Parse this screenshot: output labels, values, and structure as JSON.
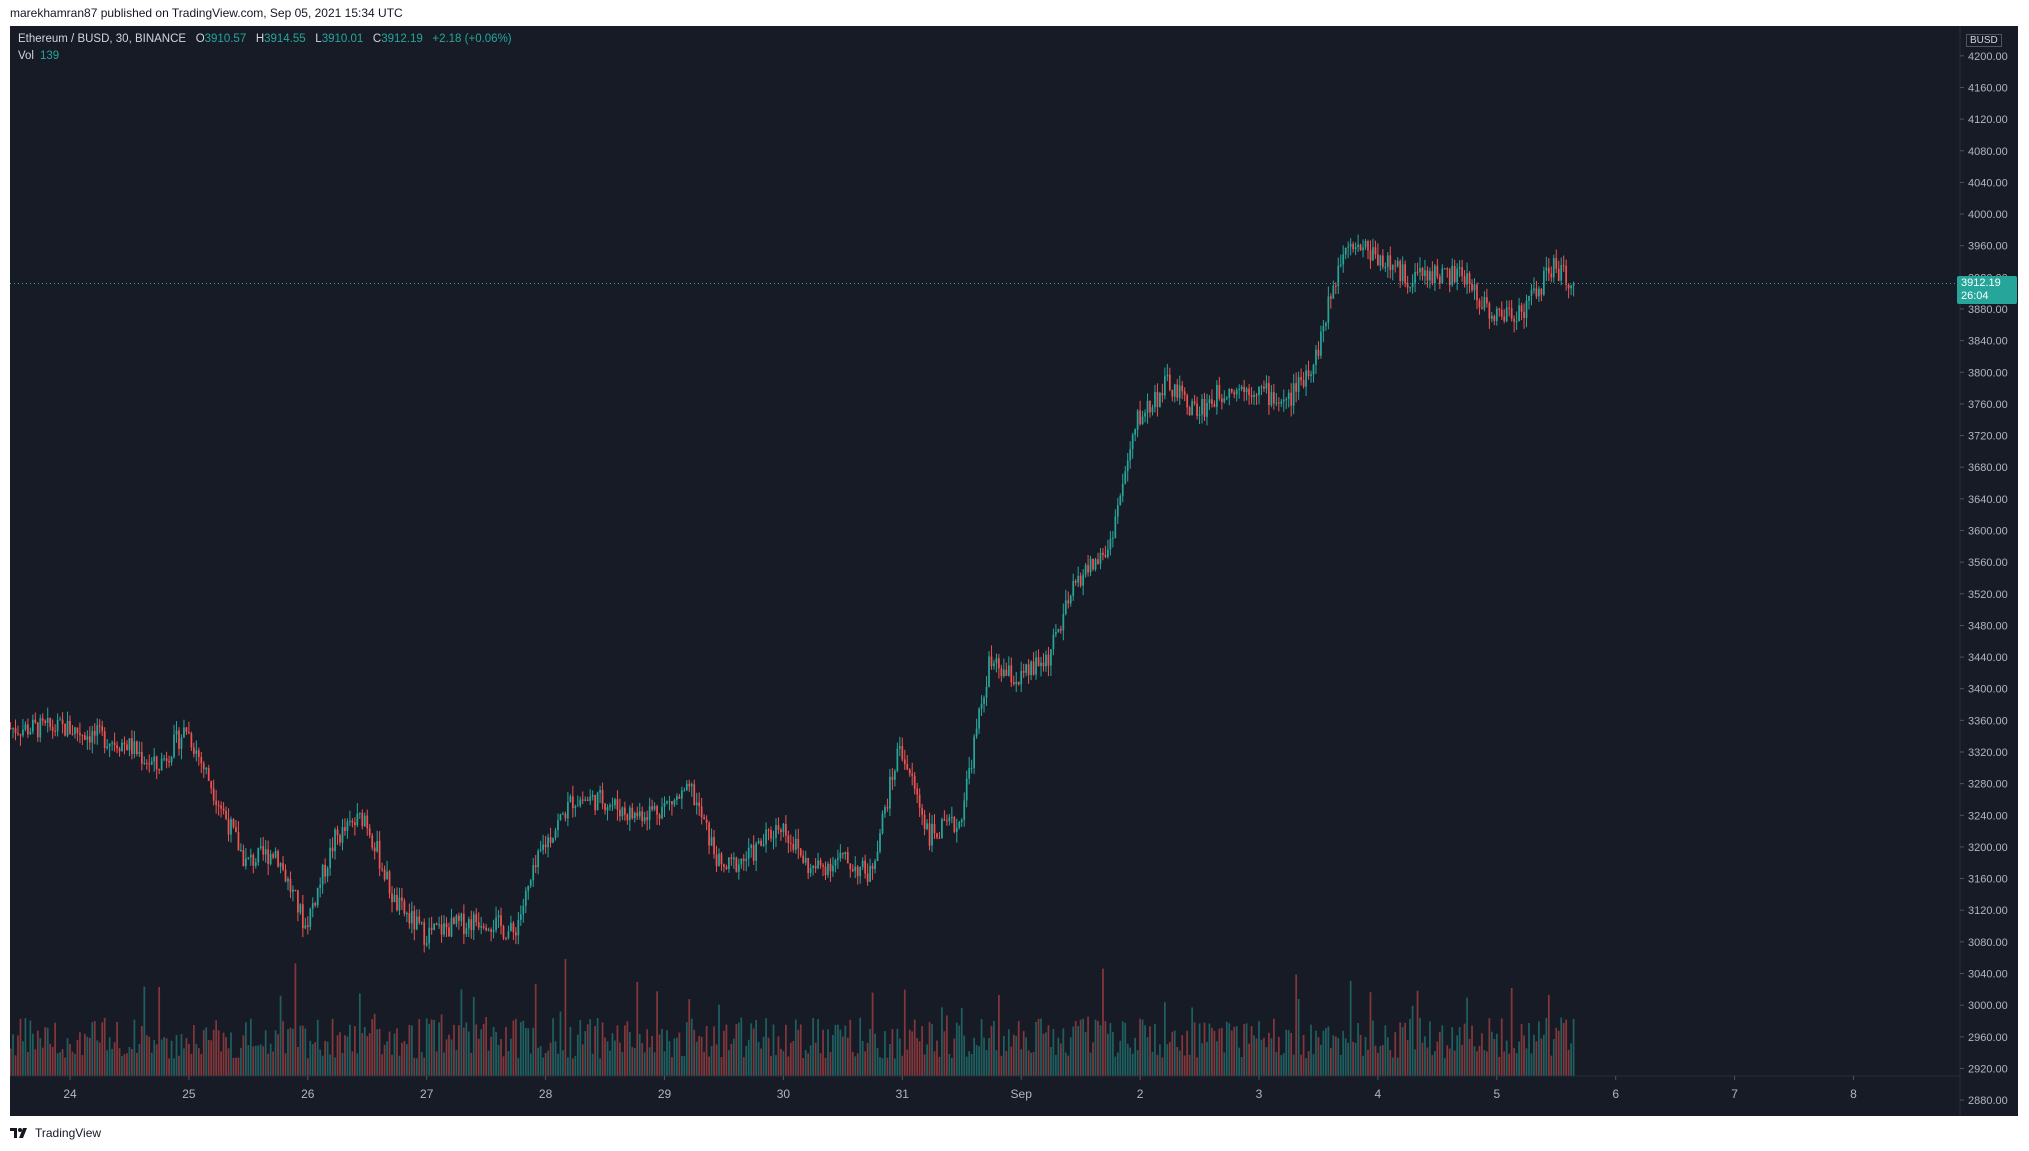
{
  "header": {
    "publisher_text": "marekhamran87 published on TradingView.com, Sep 05, 2021 15:34 UTC"
  },
  "legend": {
    "symbol": "Ethereum / BUSD, 30, BINANCE",
    "open_label": "O",
    "open": "3910.57",
    "high_label": "H",
    "high": "3914.55",
    "low_label": "L",
    "low": "3910.01",
    "close_label": "C",
    "close": "3912.19",
    "change": "+2.18 (+0.06%)",
    "vol_label": "Vol",
    "vol_value": "139"
  },
  "price_tag": {
    "price": "3912.19",
    "countdown": "26:04"
  },
  "unit_badge": "BUSD",
  "footer": {
    "brand": "TradingView"
  },
  "colors": {
    "background": "#171b26",
    "up": "#26a69a",
    "down": "#ef5350",
    "axis_text": "#b2b5be"
  },
  "chart_data": {
    "type": "candlestick",
    "timeframe": "30",
    "y_axis_ticks": [
      "4200.00",
      "4160.00",
      "4120.00",
      "4080.00",
      "4040.00",
      "4000.00",
      "3960.00",
      "3920.00",
      "3880.00",
      "3840.00",
      "3800.00",
      "3760.00",
      "3720.00",
      "3680.00",
      "3640.00",
      "3600.00",
      "3560.00",
      "3520.00",
      "3480.00",
      "3440.00",
      "3400.00",
      "3360.00",
      "3320.00",
      "3280.00",
      "3240.00",
      "3200.00",
      "3160.00",
      "3120.00",
      "3080.00",
      "3040.00",
      "3000.00",
      "2960.00",
      "2920.00",
      "2880.00"
    ],
    "y_range": [
      2870,
      4220
    ],
    "x_axis_ticks": [
      "24",
      "25",
      "26",
      "27",
      "28",
      "29",
      "30",
      "31",
      "Sep",
      "2",
      "3",
      "4",
      "5",
      "6",
      "7",
      "8"
    ],
    "last_price": 3912.19,
    "anchors": [
      {
        "date": "Aug 24 00:00",
        "price": 3350
      },
      {
        "date": "Aug 24 12:00",
        "price": 3330
      },
      {
        "date": "Aug 24 18:00",
        "price": 3300
      },
      {
        "date": "Aug 25 00:00",
        "price": 3350
      },
      {
        "date": "Aug 25 12:00",
        "price": 3180
      },
      {
        "date": "Aug 25 18:00",
        "price": 3195
      },
      {
        "date": "Aug 26 00:00",
        "price": 3100
      },
      {
        "date": "Aug 26 06:00",
        "price": 3210
      },
      {
        "date": "Aug 26 12:00",
        "price": 3240
      },
      {
        "date": "Aug 26 18:00",
        "price": 3130
      },
      {
        "date": "Aug 27 00:00",
        "price": 3090
      },
      {
        "date": "Aug 27 12:00",
        "price": 3110
      },
      {
        "date": "Aug 27 18:00",
        "price": 3090
      },
      {
        "date": "Aug 28 00:00",
        "price": 3200
      },
      {
        "date": "Aug 28 06:00",
        "price": 3260
      },
      {
        "date": "Aug 28 12:00",
        "price": 3260
      },
      {
        "date": "Aug 28 18:00",
        "price": 3240
      },
      {
        "date": "Aug 29 00:00",
        "price": 3250
      },
      {
        "date": "Aug 29 06:00",
        "price": 3270
      },
      {
        "date": "Aug 29 12:00",
        "price": 3170
      },
      {
        "date": "Aug 29 18:00",
        "price": 3190
      },
      {
        "date": "Aug 30 00:00",
        "price": 3230
      },
      {
        "date": "Aug 30 06:00",
        "price": 3170
      },
      {
        "date": "Aug 30 12:00",
        "price": 3185
      },
      {
        "date": "Aug 30 18:00",
        "price": 3165
      },
      {
        "date": "Aug 31 00:00",
        "price": 3330
      },
      {
        "date": "Aug 31 06:00",
        "price": 3215
      },
      {
        "date": "Aug 31 12:00",
        "price": 3230
      },
      {
        "date": "Aug 31 18:00",
        "price": 3430
      },
      {
        "date": "Sep 01 00:00",
        "price": 3410
      },
      {
        "date": "Sep 01 06:00",
        "price": 3440
      },
      {
        "date": "Sep 01 12:00",
        "price": 3540
      },
      {
        "date": "Sep 01 18:00",
        "price": 3575
      },
      {
        "date": "Sep 02 00:00",
        "price": 3740
      },
      {
        "date": "Sep 02 06:00",
        "price": 3785
      },
      {
        "date": "Sep 02 12:00",
        "price": 3750
      },
      {
        "date": "Sep 02 18:00",
        "price": 3780
      },
      {
        "date": "Sep 03 00:00",
        "price": 3780
      },
      {
        "date": "Sep 03 06:00",
        "price": 3760
      },
      {
        "date": "Sep 03 12:00",
        "price": 3820
      },
      {
        "date": "Sep 03 18:00",
        "price": 3970
      },
      {
        "date": "Sep 04 00:00",
        "price": 3950
      },
      {
        "date": "Sep 04 06:00",
        "price": 3920
      },
      {
        "date": "Sep 04 12:00",
        "price": 3925
      },
      {
        "date": "Sep 04 18:00",
        "price": 3920
      },
      {
        "date": "Sep 05 00:00",
        "price": 3870
      },
      {
        "date": "Sep 05 06:00",
        "price": 3880
      },
      {
        "date": "Sep 05 12:00",
        "price": 3935
      },
      {
        "date": "Sep 05 15:30",
        "price": 3912
      }
    ]
  }
}
